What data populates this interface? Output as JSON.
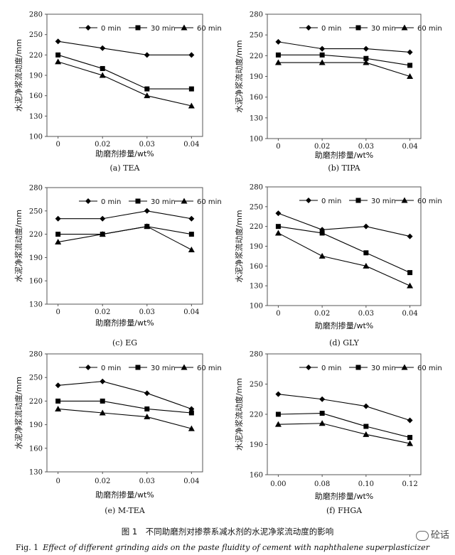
{
  "figure": {
    "caption_cn": "图 1　不同助磨剂对掺萘系减水剂的水泥净浆流动度的影响",
    "caption_en_num": "Fig. 1",
    "caption_en_text": "Effect of different grinding aids on the paste fluidity of cement with naphthalene superplasticizer",
    "watermark": "砼话"
  },
  "colors": {
    "line": "#000000",
    "axis": "#555555"
  },
  "chart_data": [
    {
      "type": "line",
      "panel_label": "(a) TEA",
      "ylabel": "水泥净浆流动度/mm",
      "xlabel": "助磨剂掺量/wt%",
      "categories": [
        "0",
        "0.02",
        "0.03",
        "0.04"
      ],
      "ylim": [
        100,
        280
      ],
      "yticks": [
        100,
        130,
        160,
        190,
        220,
        250,
        280
      ],
      "legend_position": "top",
      "series": [
        {
          "name": "0 min",
          "marker": "diamond",
          "values": [
            240,
            230,
            220,
            220
          ]
        },
        {
          "name": "30 min",
          "marker": "square",
          "values": [
            220,
            200,
            170,
            170
          ]
        },
        {
          "name": "60 min",
          "marker": "triangle",
          "values": [
            210,
            190,
            160,
            145
          ]
        }
      ]
    },
    {
      "type": "line",
      "panel_label": "(b) TIPA",
      "ylabel": "水泥净浆流动度/mm",
      "xlabel": "助磨剂掺量/wt%",
      "categories": [
        "0",
        "0.02",
        "0.03",
        "0.04"
      ],
      "ylim": [
        100,
        280
      ],
      "yticks": [
        100,
        130,
        160,
        190,
        220,
        250,
        280
      ],
      "legend_position": "top",
      "series": [
        {
          "name": "0 min",
          "marker": "diamond",
          "values": [
            240,
            230,
            230,
            225
          ]
        },
        {
          "name": "30 min",
          "marker": "square",
          "values": [
            221,
            221,
            216,
            206
          ]
        },
        {
          "name": "60 min",
          "marker": "triangle",
          "values": [
            210,
            210,
            210,
            190
          ]
        }
      ]
    },
    {
      "type": "line",
      "panel_label": "(c) EG",
      "ylabel": "水泥净浆流动度/mm",
      "xlabel": "助磨剂掺量/wt%",
      "categories": [
        "0",
        "0.02",
        "0.03",
        "0.04"
      ],
      "ylim": [
        130,
        280
      ],
      "yticks": [
        130,
        160,
        190,
        220,
        250,
        280
      ],
      "legend_position": "top",
      "series": [
        {
          "name": "0 min",
          "marker": "diamond",
          "values": [
            240,
            240,
            250,
            240
          ]
        },
        {
          "name": "30 min",
          "marker": "square",
          "values": [
            220,
            220,
            230,
            220
          ]
        },
        {
          "name": "60 min",
          "marker": "triangle",
          "values": [
            210,
            220,
            230,
            200
          ]
        }
      ]
    },
    {
      "type": "line",
      "panel_label": "(d) GLY",
      "ylabel": "水泥净浆流动度/mm",
      "xlabel": "助磨剂掺量/wt%",
      "categories": [
        "0",
        "0.02",
        "0.03",
        "0.04"
      ],
      "ylim": [
        100,
        280
      ],
      "yticks": [
        100,
        130,
        160,
        190,
        220,
        250,
        280
      ],
      "legend_position": "top",
      "series": [
        {
          "name": "0 min",
          "marker": "diamond",
          "values": [
            240,
            215,
            220,
            205
          ]
        },
        {
          "name": "30 min",
          "marker": "square",
          "values": [
            220,
            210,
            180,
            150
          ]
        },
        {
          "name": "60 min",
          "marker": "triangle",
          "values": [
            210,
            175,
            160,
            130
          ]
        }
      ]
    },
    {
      "type": "line",
      "panel_label": "(e) M-TEA",
      "ylabel": "水泥净浆流动度/mm",
      "xlabel": "助磨剂掺量/wt%",
      "categories": [
        "0",
        "0.02",
        "0.03",
        "0.04"
      ],
      "ylim": [
        130,
        280
      ],
      "yticks": [
        130,
        160,
        190,
        220,
        250,
        280
      ],
      "legend_position": "top",
      "series": [
        {
          "name": "0 min",
          "marker": "diamond",
          "values": [
            240,
            245,
            230,
            210
          ]
        },
        {
          "name": "30 min",
          "marker": "square",
          "values": [
            220,
            220,
            210,
            205
          ]
        },
        {
          "name": "60 min",
          "marker": "triangle",
          "values": [
            210,
            205,
            200,
            185
          ]
        }
      ]
    },
    {
      "type": "line",
      "panel_label": "(f) FHGA",
      "ylabel": "水泥净浆流动度/mm",
      "xlabel": "助磨剂掺量/wt%",
      "categories": [
        "0.00",
        "0.08",
        "0.10",
        "0.12"
      ],
      "ylim": [
        160,
        280
      ],
      "yticks": [
        160,
        190,
        220,
        250,
        280
      ],
      "legend_position": "top",
      "series": [
        {
          "name": "0 min",
          "marker": "diamond",
          "values": [
            240,
            235,
            228,
            214
          ]
        },
        {
          "name": "30 min",
          "marker": "square",
          "values": [
            220,
            221,
            208,
            197
          ]
        },
        {
          "name": "60 min",
          "marker": "triangle",
          "values": [
            210,
            211,
            200,
            191
          ]
        }
      ]
    }
  ]
}
